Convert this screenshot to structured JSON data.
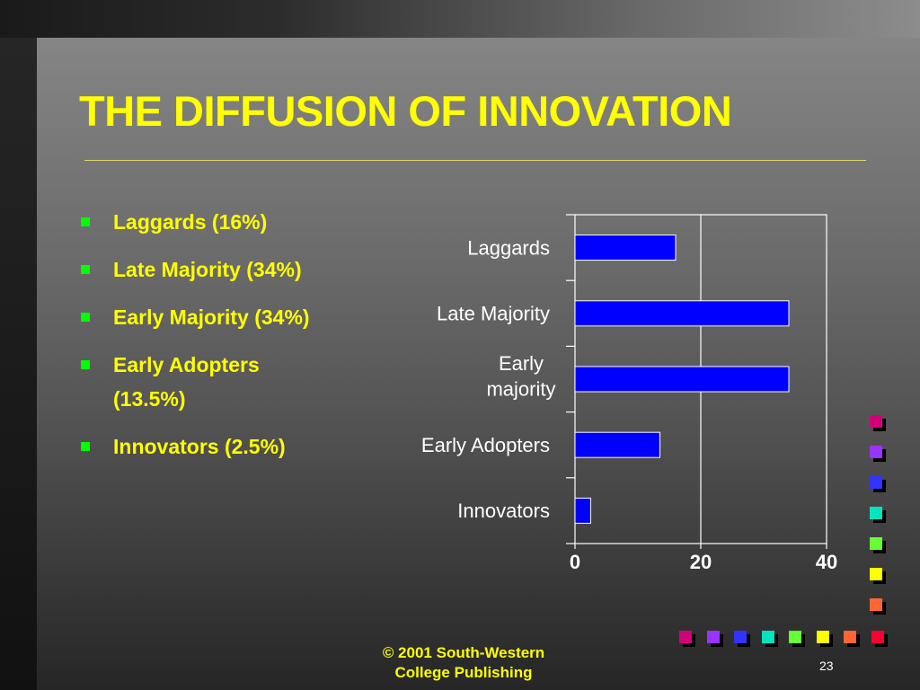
{
  "slide": {
    "title": "THE DIFFUSION OF INNOVATION",
    "bullets": [
      "Laggards (16%)",
      "Late Majority (34%)",
      "Early Majority (34%)",
      "Early Adopters (13.5%)",
      "Innovators (2.5%)"
    ],
    "footer_line1": "© 2001 South-Western",
    "footer_line2": "College Publishing",
    "page_number": "23"
  },
  "colors": {
    "title": "#ffff00",
    "bullet_text": "#ffff00",
    "bullet_marker": "#00ff00",
    "bar": "#0000ff",
    "decor_squares": [
      "#d4007a",
      "#9933ff",
      "#3333ff",
      "#00e5c0",
      "#66ff33",
      "#ffff00",
      "#ff6633",
      "#ff0033"
    ]
  },
  "chart_data": {
    "type": "bar",
    "orientation": "horizontal",
    "categories": [
      "Laggards",
      "Late Majority",
      "Early majority",
      "Early Adopters",
      "Innovators"
    ],
    "values": [
      16,
      34,
      34,
      13.5,
      2.5
    ],
    "xlim": [
      0,
      40
    ],
    "xticks": [
      "0",
      "20",
      "40"
    ],
    "grid": true
  }
}
